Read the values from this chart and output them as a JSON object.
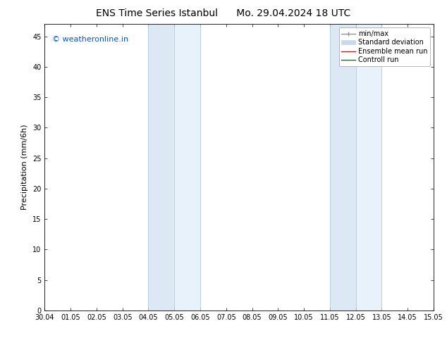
{
  "title_left": "ENS Time Series Istanbul",
  "title_right": "Mo. 29.04.2024 18 UTC",
  "ylabel": "Precipitation (mm/6h)",
  "watermark": "© weatheronline.in",
  "watermark_color": "#0055cc",
  "xticklabels": [
    "30.04",
    "01.05",
    "02.05",
    "03.05",
    "04.05",
    "05.05",
    "06.05",
    "07.05",
    "08.05",
    "09.05",
    "10.05",
    "11.05",
    "12.05",
    "13.05",
    "14.05",
    "15.05"
  ],
  "yticks": [
    0,
    5,
    10,
    15,
    20,
    25,
    30,
    35,
    40,
    45
  ],
  "ylim": [
    0,
    47
  ],
  "xlim": [
    0,
    15
  ],
  "background_color": "#ffffff",
  "plot_bg_color": "#ffffff",
  "shaded_bands": [
    {
      "x_start": 4.0,
      "x_end": 5.0,
      "color": "#dce9f5"
    },
    {
      "x_start": 5.0,
      "x_end": 6.0,
      "color": "#e8f2fb"
    },
    {
      "x_start": 11.0,
      "x_end": 12.0,
      "color": "#dce9f5"
    },
    {
      "x_start": 12.0,
      "x_end": 13.0,
      "color": "#e8f2fb"
    }
  ],
  "band_border_color": "#b0c8e0",
  "legend_items": [
    {
      "label": "min/max",
      "color": "#a0a0a0",
      "linestyle": "-",
      "linewidth": 1.0
    },
    {
      "label": "Standard deviation",
      "color": "#c8d8eb",
      "linestyle": "-",
      "linewidth": 8
    },
    {
      "label": "Ensemble mean run",
      "color": "#ff0000",
      "linestyle": "-",
      "linewidth": 1.0
    },
    {
      "label": "Controll run",
      "color": "#008000",
      "linestyle": "-",
      "linewidth": 1.0
    }
  ],
  "title_fontsize": 10,
  "tick_fontsize": 7,
  "ylabel_fontsize": 8,
  "watermark_fontsize": 8,
  "legend_fontsize": 7
}
